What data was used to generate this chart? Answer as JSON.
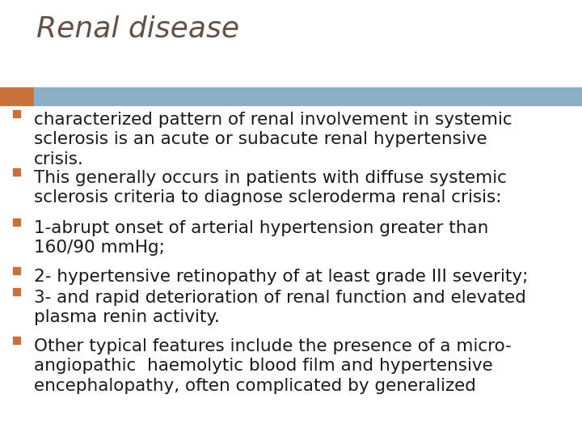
{
  "title": "Renal disease",
  "title_color": "#635048",
  "title_fontsize": 26,
  "title_bold": false,
  "header_bar_color1": "#C8713A",
  "header_bar_color2": "#8BAFC5",
  "bullet_color": "#C8713A",
  "text_color": "#1A1A1A",
  "background_color": "#FFFFFF",
  "bullet_fontsize": 15.5,
  "bullet_items": [
    "characterized pattern of renal involvement in systemic\nsclerosis is an acute or subacute renal hypertensive\ncrisis.",
    "This generally occurs in patients with diffuse systemic\nsclerosis criteria to diagnose scleroderma renal crisis:",
    "1-abrupt onset of arterial hypertension greater than\n160/90 mmHg;",
    "2- hypertensive retinopathy of at least grade III severity;",
    "3- and rapid deterioration of renal function and elevated\nplasma renin activity.",
    "Other typical features include the presence of a micro-\nangiopathic  haemolytic blood film and hypertensive\nencephalopathy, often complicated by generalized"
  ]
}
